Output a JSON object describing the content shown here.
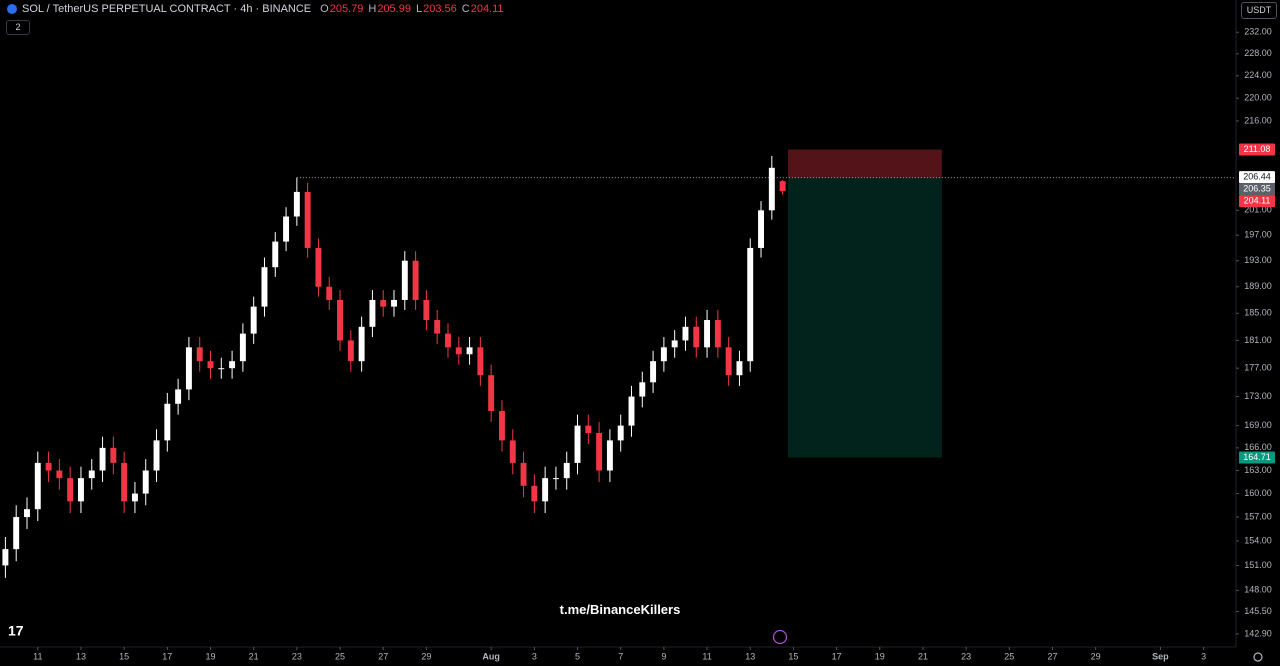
{
  "chart_data": {
    "type": "candlestick",
    "title": "SOL / TetherUS PERPETUAL CONTRACT · 4h · BINANCE",
    "ohlc_legend": [
      {
        "label": "O",
        "value": 205.79
      },
      {
        "label": "H",
        "value": 205.99
      },
      {
        "label": "L",
        "value": 203.56
      },
      {
        "label": "C",
        "value": 204.11
      }
    ],
    "indicator_count": 2,
    "currency": "USDT",
    "watermark": "t.me/BinanceKillers",
    "categories": [
      null,
      null,
      null,
      null,
      null,
      null,
      null,
      null,
      null,
      null,
      null,
      null,
      null,
      null,
      null,
      null,
      null,
      null,
      null,
      null,
      null,
      null,
      null,
      null,
      null,
      null,
      null,
      null,
      null,
      null,
      null,
      null,
      null,
      null,
      null,
      null,
      null,
      null,
      null,
      null,
      null,
      null,
      null,
      null,
      null,
      null,
      null,
      null,
      null,
      null,
      null,
      null,
      null,
      null,
      null,
      null,
      null,
      null,
      null,
      null,
      null,
      null,
      null,
      null,
      null,
      null,
      null,
      null,
      null,
      null,
      null,
      null,
      null
    ],
    "open": [
      151,
      153,
      157,
      158,
      164,
      163,
      162,
      159,
      162,
      163,
      166,
      164,
      159,
      160,
      163,
      167,
      172,
      174,
      180,
      178,
      177,
      177,
      178,
      182,
      186,
      192,
      196,
      200,
      204,
      195,
      189,
      187,
      181,
      178,
      183,
      187,
      186,
      187,
      193,
      187,
      184,
      182,
      180,
      179,
      180,
      176,
      171,
      167,
      164,
      161,
      159,
      162,
      162,
      164,
      169,
      168,
      163,
      167,
      169,
      173,
      175,
      178,
      180,
      181,
      183,
      180,
      184,
      180,
      176,
      178,
      195,
      201,
      205.79
    ],
    "high": [
      154.5,
      158.5,
      159.5,
      165.5,
      165.5,
      164.5,
      163.5,
      163.5,
      164.5,
      167.5,
      167.5,
      165.5,
      161.5,
      164.5,
      168.5,
      173.5,
      175.5,
      181.5,
      181.5,
      179.5,
      178.5,
      179.5,
      183.5,
      187.5,
      193.5,
      197.5,
      201.5,
      206.35,
      205.5,
      196.5,
      190.5,
      188.5,
      182.5,
      184.5,
      188.5,
      188.5,
      188.5,
      194.5,
      194.5,
      188.5,
      185.5,
      183.5,
      181.5,
      181.5,
      181.5,
      177.5,
      172.5,
      168.5,
      165.5,
      162.5,
      163.5,
      163.5,
      165.5,
      170.5,
      170.5,
      169.5,
      168.5,
      170.5,
      174.5,
      176.5,
      179.5,
      181.5,
      182.5,
      184.5,
      184.5,
      185.5,
      185.5,
      181.5,
      179.5,
      196.5,
      202.5,
      210,
      205.99
    ],
    "low": [
      149.5,
      151.5,
      155.5,
      156.5,
      161.5,
      160.5,
      157.5,
      157.5,
      160.5,
      161.5,
      162.5,
      157.5,
      157.5,
      158.5,
      161.5,
      165.5,
      170.5,
      172.5,
      176.5,
      175.5,
      175.5,
      175.5,
      176.5,
      180.5,
      184.5,
      190.5,
      194.5,
      198.5,
      193.5,
      187.5,
      185.5,
      179.5,
      176.5,
      176.5,
      181.5,
      184.5,
      184.5,
      185.5,
      185.5,
      182.5,
      180.5,
      178.5,
      177.5,
      177.5,
      174.5,
      169.5,
      165.5,
      162.5,
      159.5,
      157.5,
      157.5,
      160.5,
      160.5,
      162.5,
      166.5,
      161.5,
      161.5,
      165.5,
      167.5,
      171.5,
      173.5,
      176.5,
      178.5,
      179.5,
      178.5,
      178.5,
      178.5,
      174.5,
      174.5,
      176.5,
      193.5,
      199.5,
      203.56
    ],
    "close": [
      153,
      157,
      158,
      164,
      163,
      162,
      159,
      162,
      163,
      166,
      164,
      159,
      160,
      163,
      167,
      172,
      174,
      180,
      178,
      177,
      177,
      178,
      182,
      186,
      192,
      196,
      200,
      204,
      195,
      189,
      187,
      181,
      178,
      183,
      187,
      186,
      187,
      193,
      187,
      184,
      182,
      180,
      179,
      180,
      176,
      171,
      167,
      164,
      161,
      159,
      162,
      162,
      164,
      169,
      168,
      163,
      167,
      169,
      173,
      175,
      178,
      180,
      181,
      183,
      180,
      184,
      180,
      176,
      178,
      195,
      201,
      208,
      204.11
    ],
    "up_color": "#ffffff",
    "down_color": "#f23645",
    "log": true,
    "ylim": [
      141.4,
      238.1
    ],
    "yticks": [
      {
        "value": 232,
        "label": "232.00"
      },
      {
        "value": 228,
        "label": "228.00"
      },
      {
        "value": 224,
        "label": "224.00"
      },
      {
        "value": 220,
        "label": "220.00"
      },
      {
        "value": 216,
        "label": "216.00"
      },
      {
        "value": 201,
        "label": "201.00"
      },
      {
        "value": 197,
        "label": "197.00"
      },
      {
        "value": 193,
        "label": "193.00"
      },
      {
        "value": 189,
        "label": "189.00"
      },
      {
        "value": 185,
        "label": "185.00"
      },
      {
        "value": 181,
        "label": "181.00"
      },
      {
        "value": 177,
        "label": "177.00"
      },
      {
        "value": 173,
        "label": "173.00"
      },
      {
        "value": 169,
        "label": "169.00"
      },
      {
        "value": 166,
        "label": "166.00"
      },
      {
        "value": 163,
        "label": "163.00"
      },
      {
        "value": 160,
        "label": "160.00"
      },
      {
        "value": 157,
        "label": "157.00"
      },
      {
        "value": 154,
        "label": "154.00"
      },
      {
        "value": 151,
        "label": "151.00"
      },
      {
        "value": 148,
        "label": "148.00"
      },
      {
        "value": 145.5,
        "label": "145.50"
      },
      {
        "value": 142.9,
        "label": "142.90"
      }
    ],
    "xlim": [
      -0.5,
      114
    ],
    "xticks": [
      {
        "value": 3,
        "label": "11"
      },
      {
        "value": 7,
        "label": "13"
      },
      {
        "value": 11,
        "label": "15"
      },
      {
        "value": 15,
        "label": "17"
      },
      {
        "value": 19,
        "label": "19"
      },
      {
        "value": 23,
        "label": "21"
      },
      {
        "value": 27,
        "label": "23"
      },
      {
        "value": 31,
        "label": "25"
      },
      {
        "value": 35,
        "label": "27"
      },
      {
        "value": 39,
        "label": "29"
      },
      {
        "value": 45,
        "label": "Aug"
      },
      {
        "value": 49,
        "label": "3"
      },
      {
        "value": 53,
        "label": "5"
      },
      {
        "value": 57,
        "label": "7"
      },
      {
        "value": 61,
        "label": "9"
      },
      {
        "value": 65,
        "label": "11"
      },
      {
        "value": 69,
        "label": "13"
      },
      {
        "value": 73,
        "label": "15"
      },
      {
        "value": 77,
        "label": "17"
      },
      {
        "value": 81,
        "label": "19"
      },
      {
        "value": 85,
        "label": "21"
      },
      {
        "value": 89,
        "label": "23"
      },
      {
        "value": 93,
        "label": "25"
      },
      {
        "value": 97,
        "label": "27"
      },
      {
        "value": 101,
        "label": "29"
      },
      {
        "value": 107,
        "label": "Sep"
      },
      {
        "value": 111,
        "label": "3"
      }
    ],
    "high_line": {
      "value": 206.35,
      "start": 27
    },
    "position": {
      "entry": 206.35,
      "stop": 211.08,
      "target": 164.71,
      "start": 72.5,
      "end": 86.75
    },
    "price_labels": [
      {
        "value": 211.08,
        "color": "#f23645"
      },
      {
        "value": 206.44,
        "color": "#ffffff"
      },
      {
        "value": 206.35,
        "color": "#5d606b"
      },
      {
        "value": 204.11,
        "color": "#f23645"
      },
      {
        "value": 164.71,
        "color": "#089981"
      }
    ]
  }
}
